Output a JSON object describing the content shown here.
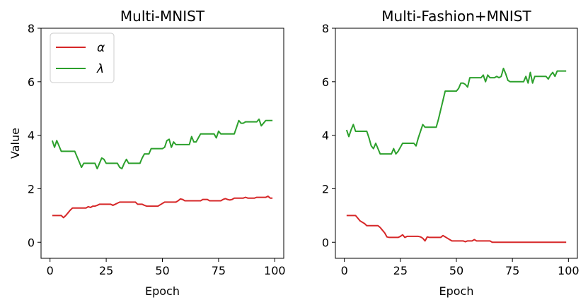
{
  "chart_data": [
    {
      "type": "line",
      "title": "Multi-MNIST",
      "xlabel": "Epoch",
      "ylabel": "Value",
      "xlim": [
        -4,
        104
      ],
      "ylim": [
        -0.6,
        8
      ],
      "xticks": [
        0,
        25,
        50,
        75,
        100
      ],
      "yticks": [
        0,
        2,
        4,
        6,
        8
      ],
      "grid": false,
      "legend": "top-left",
      "series": [
        {
          "name": "α",
          "color": "#d62728",
          "x": [
            1,
            2,
            3,
            4,
            5,
            6,
            7,
            8,
            9,
            10,
            11,
            12,
            13,
            14,
            15,
            16,
            17,
            18,
            19,
            20,
            21,
            22,
            23,
            24,
            25,
            26,
            27,
            28,
            29,
            30,
            31,
            32,
            33,
            34,
            35,
            36,
            37,
            38,
            39,
            40,
            41,
            42,
            43,
            44,
            45,
            46,
            47,
            48,
            49,
            50,
            51,
            52,
            53,
            54,
            55,
            56,
            57,
            58,
            59,
            60,
            61,
            62,
            63,
            64,
            65,
            66,
            67,
            68,
            69,
            70,
            71,
            72,
            73,
            74,
            75,
            76,
            77,
            78,
            79,
            80,
            81,
            82,
            83,
            84,
            85,
            86,
            87,
            88,
            89,
            90,
            91,
            92,
            93,
            94,
            95,
            96,
            97,
            98,
            99
          ],
          "y": [
            1.0,
            1.0,
            1.0,
            1.0,
            1.0,
            0.92,
            1.0,
            1.1,
            1.2,
            1.28,
            1.28,
            1.28,
            1.28,
            1.28,
            1.28,
            1.28,
            1.33,
            1.3,
            1.35,
            1.35,
            1.38,
            1.42,
            1.42,
            1.42,
            1.42,
            1.42,
            1.42,
            1.38,
            1.42,
            1.46,
            1.5,
            1.5,
            1.5,
            1.5,
            1.5,
            1.5,
            1.5,
            1.5,
            1.42,
            1.42,
            1.42,
            1.38,
            1.35,
            1.35,
            1.35,
            1.35,
            1.35,
            1.35,
            1.4,
            1.45,
            1.5,
            1.5,
            1.5,
            1.5,
            1.5,
            1.5,
            1.55,
            1.62,
            1.6,
            1.55,
            1.55,
            1.55,
            1.55,
            1.55,
            1.55,
            1.55,
            1.55,
            1.6,
            1.6,
            1.6,
            1.55,
            1.55,
            1.55,
            1.55,
            1.55,
            1.55,
            1.6,
            1.63,
            1.6,
            1.58,
            1.6,
            1.65,
            1.65,
            1.65,
            1.65,
            1.65,
            1.68,
            1.65,
            1.65,
            1.65,
            1.65,
            1.68,
            1.68,
            1.68,
            1.68,
            1.68,
            1.72,
            1.65,
            1.65
          ]
        },
        {
          "name": "λ",
          "color": "#2ca02c",
          "x": [
            1,
            2,
            3,
            4,
            5,
            6,
            7,
            8,
            9,
            10,
            11,
            12,
            13,
            14,
            15,
            16,
            17,
            18,
            19,
            20,
            21,
            22,
            23,
            24,
            25,
            26,
            27,
            28,
            29,
            30,
            31,
            32,
            33,
            34,
            35,
            36,
            37,
            38,
            39,
            40,
            41,
            42,
            43,
            44,
            45,
            46,
            47,
            48,
            49,
            50,
            51,
            52,
            53,
            54,
            55,
            56,
            57,
            58,
            59,
            60,
            61,
            62,
            63,
            64,
            65,
            66,
            67,
            68,
            69,
            70,
            71,
            72,
            73,
            74,
            75,
            76,
            77,
            78,
            79,
            80,
            81,
            82,
            83,
            84,
            85,
            86,
            87,
            88,
            89,
            90,
            91,
            92,
            93,
            94,
            95,
            96,
            97,
            98,
            99
          ],
          "y": [
            3.8,
            3.55,
            3.8,
            3.6,
            3.4,
            3.4,
            3.4,
            3.4,
            3.4,
            3.4,
            3.4,
            3.2,
            3.0,
            2.8,
            2.95,
            2.95,
            2.95,
            2.95,
            2.95,
            2.95,
            2.75,
            2.95,
            3.15,
            3.1,
            2.95,
            2.95,
            2.95,
            2.95,
            2.95,
            2.95,
            2.8,
            2.75,
            2.95,
            3.1,
            2.95,
            2.95,
            2.95,
            2.95,
            2.95,
            2.95,
            3.15,
            3.3,
            3.3,
            3.3,
            3.5,
            3.5,
            3.5,
            3.5,
            3.5,
            3.5,
            3.55,
            3.8,
            3.85,
            3.55,
            3.75,
            3.65,
            3.65,
            3.65,
            3.65,
            3.65,
            3.65,
            3.65,
            3.95,
            3.75,
            3.75,
            3.9,
            4.05,
            4.05,
            4.05,
            4.05,
            4.05,
            4.05,
            4.05,
            3.9,
            4.15,
            4.05,
            4.05,
            4.05,
            4.05,
            4.05,
            4.05,
            4.05,
            4.3,
            4.55,
            4.45,
            4.45,
            4.5,
            4.5,
            4.5,
            4.5,
            4.5,
            4.5,
            4.6,
            4.35,
            4.45,
            4.55,
            4.55,
            4.55,
            4.55
          ]
        }
      ]
    },
    {
      "type": "line",
      "title": "Multi-Fashion+MNIST",
      "xlabel": "Epoch",
      "ylabel": "",
      "xlim": [
        -4,
        104
      ],
      "ylim": [
        -0.6,
        8
      ],
      "xticks": [
        0,
        25,
        50,
        75,
        100
      ],
      "yticks": [
        0,
        2,
        4,
        6,
        8
      ],
      "grid": false,
      "series": [
        {
          "color": "#d62728",
          "x": [
            1,
            2,
            3,
            4,
            5,
            6,
            7,
            8,
            9,
            10,
            11,
            12,
            13,
            14,
            15,
            16,
            17,
            18,
            19,
            20,
            21,
            22,
            23,
            24,
            25,
            26,
            27,
            28,
            29,
            30,
            31,
            32,
            33,
            34,
            35,
            36,
            37,
            38,
            39,
            40,
            41,
            42,
            43,
            44,
            45,
            46,
            47,
            48,
            49,
            50,
            51,
            52,
            53,
            54,
            55,
            56,
            57,
            58,
            59,
            60,
            61,
            62,
            63,
            64,
            65,
            66,
            67,
            68,
            69,
            70,
            71,
            72,
            73,
            74,
            75,
            76,
            77,
            78,
            79,
            80,
            81,
            82,
            83,
            84,
            85,
            86,
            87,
            88,
            89,
            90,
            91,
            92,
            93,
            94,
            95,
            96,
            97,
            98,
            99
          ],
          "y": [
            1.0,
            1.0,
            1.0,
            1.0,
            1.0,
            0.9,
            0.8,
            0.75,
            0.7,
            0.62,
            0.62,
            0.62,
            0.62,
            0.62,
            0.62,
            0.55,
            0.45,
            0.35,
            0.2,
            0.18,
            0.18,
            0.18,
            0.18,
            0.18,
            0.22,
            0.28,
            0.18,
            0.22,
            0.22,
            0.22,
            0.22,
            0.22,
            0.22,
            0.2,
            0.15,
            0.05,
            0.2,
            0.18,
            0.18,
            0.18,
            0.18,
            0.18,
            0.18,
            0.25,
            0.2,
            0.15,
            0.1,
            0.05,
            0.05,
            0.05,
            0.05,
            0.05,
            0.05,
            0.02,
            0.05,
            0.05,
            0.05,
            0.1,
            0.05,
            0.05,
            0.05,
            0.05,
            0.05,
            0.05,
            0.05,
            0.0,
            0.0,
            0.0,
            0.0,
            0.0,
            0.0,
            0.0,
            0.0,
            0.0,
            0.0,
            0.0,
            0.0,
            0.0,
            0.0,
            0.0,
            0.0,
            0.0,
            0.0,
            0.0,
            0.0,
            0.0,
            0.0,
            0.0,
            0.0,
            0.0,
            0.0,
            0.0,
            0.0,
            0.0,
            0.0,
            0.0,
            0.0,
            0.0,
            0.0
          ]
        },
        {
          "color": "#2ca02c",
          "x": [
            1,
            2,
            3,
            4,
            5,
            6,
            7,
            8,
            9,
            10,
            11,
            12,
            13,
            14,
            15,
            16,
            17,
            18,
            19,
            20,
            21,
            22,
            23,
            24,
            25,
            26,
            27,
            28,
            29,
            30,
            31,
            32,
            33,
            34,
            35,
            36,
            37,
            38,
            39,
            40,
            41,
            42,
            43,
            44,
            45,
            46,
            47,
            48,
            49,
            50,
            51,
            52,
            53,
            54,
            55,
            56,
            57,
            58,
            59,
            60,
            61,
            62,
            63,
            64,
            65,
            66,
            67,
            68,
            69,
            70,
            71,
            72,
            73,
            74,
            75,
            76,
            77,
            78,
            79,
            80,
            81,
            82,
            83,
            84,
            85,
            86,
            87,
            88,
            89,
            90,
            91,
            92,
            93,
            94,
            95,
            96,
            97,
            98,
            99
          ],
          "y": [
            4.2,
            3.95,
            4.2,
            4.4,
            4.15,
            4.15,
            4.15,
            4.15,
            4.15,
            4.15,
            3.9,
            3.6,
            3.5,
            3.7,
            3.5,
            3.3,
            3.3,
            3.3,
            3.3,
            3.3,
            3.3,
            3.5,
            3.3,
            3.4,
            3.55,
            3.7,
            3.7,
            3.7,
            3.7,
            3.7,
            3.7,
            3.6,
            3.9,
            4.15,
            4.4,
            4.3,
            4.3,
            4.3,
            4.3,
            4.3,
            4.3,
            4.6,
            4.95,
            5.3,
            5.65,
            5.65,
            5.65,
            5.65,
            5.65,
            5.65,
            5.75,
            5.95,
            5.95,
            5.9,
            5.8,
            6.15,
            6.15,
            6.15,
            6.15,
            6.15,
            6.15,
            6.25,
            6.0,
            6.25,
            6.15,
            6.15,
            6.15,
            6.2,
            6.15,
            6.2,
            6.5,
            6.3,
            6.05,
            6.0,
            6.0,
            6.0,
            6.0,
            6.0,
            6.0,
            6.0,
            6.2,
            5.95,
            6.35,
            5.95,
            6.2,
            6.2,
            6.2,
            6.2,
            6.2,
            6.2,
            6.1,
            6.25,
            6.35,
            6.2,
            6.4,
            6.4,
            6.4,
            6.4,
            6.4
          ]
        }
      ]
    }
  ]
}
